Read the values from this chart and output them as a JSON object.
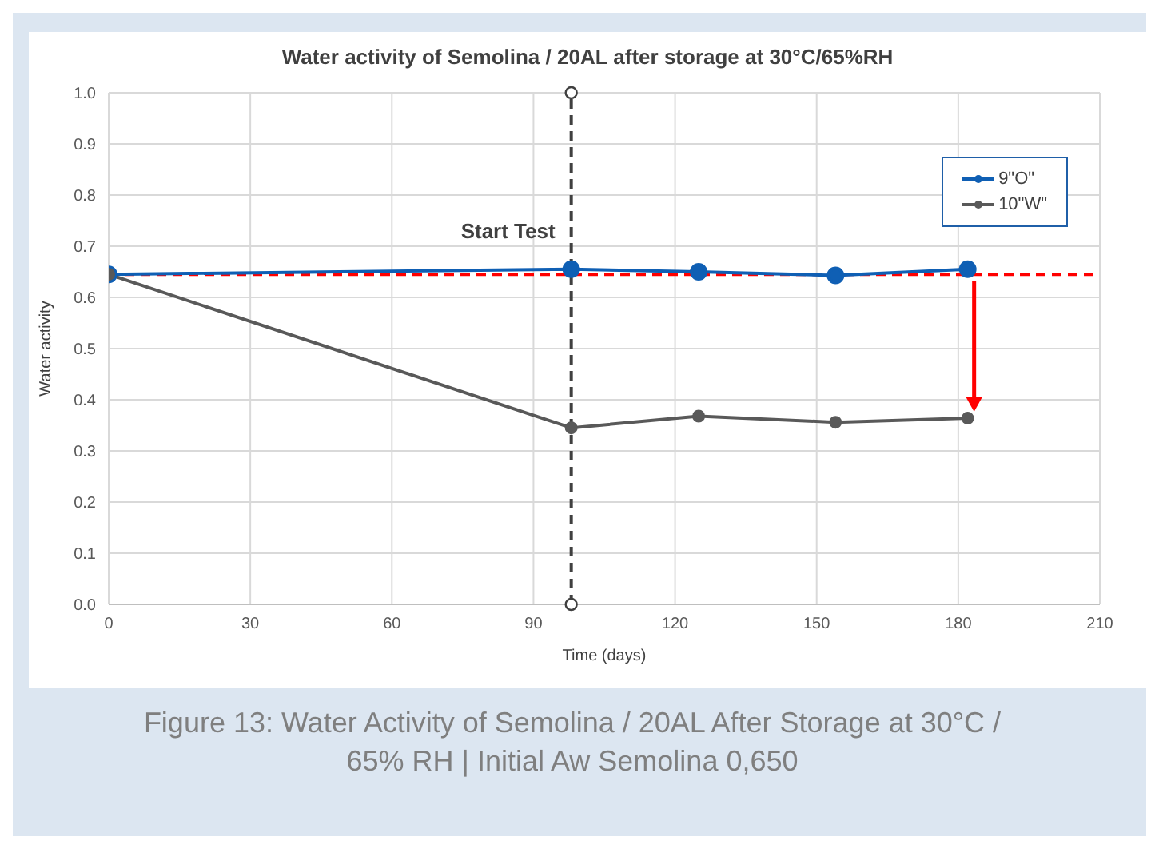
{
  "chart_data": {
    "type": "line",
    "title": "Water activity of Semolina / 20AL after storage at 30°C/65%RH",
    "xlabel": "Time (days)",
    "ylabel": "Water activity",
    "x": [
      0,
      98,
      125,
      154,
      182
    ],
    "series": [
      {
        "name": "9\"O\"",
        "color": "#0f5fb4",
        "values": [
          0.645,
          0.655,
          0.65,
          0.643,
          0.655
        ]
      },
      {
        "name": "10\"W\"",
        "color": "#595959",
        "values": [
          0.645,
          0.345,
          0.368,
          0.356,
          0.364
        ]
      }
    ],
    "xlim": [
      0,
      210
    ],
    "xticks": [
      0,
      30,
      60,
      90,
      120,
      150,
      180,
      210
    ],
    "ylim": [
      0,
      1
    ],
    "yticks": [
      {
        "value": 0,
        "label": "0.0"
      },
      0.1,
      0.2,
      0.3,
      0.4,
      0.5,
      0.6,
      0.7,
      0.8,
      0.9,
      {
        "value": 1,
        "label": "1.0"
      }
    ],
    "ref_lines": [
      {
        "axis": "y",
        "value": 0.645,
        "color": "#ff0000",
        "line_style": "dashed"
      },
      {
        "axis": "x",
        "value": 98,
        "label": "Start Test",
        "color": "#404040",
        "line_style": "dashed"
      }
    ],
    "annotations": [
      "Figure 13: Water Activity of Semolina / 20AL After Storage at 30°C / 65% RH  |  Initial Aw Semolina 0,650"
    ],
    "grid": true,
    "legend": "top right",
    "marker": "circle",
    "line_style": "solid"
  }
}
